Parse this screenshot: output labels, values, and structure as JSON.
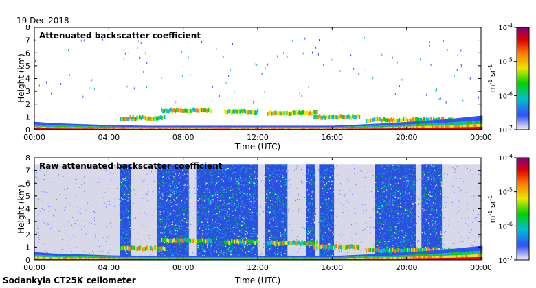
{
  "header": {
    "date": "19 Dec 2018"
  },
  "footer": {
    "instrument": "Sodankyla CT25K ceilometer"
  },
  "chart_data": [
    {
      "type": "heatmap",
      "title": "Attenuated backscatter coefficient",
      "xlabel": "Time (UTC)",
      "ylabel": "Height (km)",
      "x_ticks": [
        "00:00",
        "04:00",
        "08:00",
        "12:00",
        "16:00",
        "20:00",
        "00:00"
      ],
      "y_ticks": [
        "0",
        "1",
        "2",
        "3",
        "4",
        "5",
        "6",
        "7",
        "8"
      ],
      "xlim_hours": [
        0,
        24
      ],
      "ylim_km": [
        0,
        8
      ],
      "colorbar": {
        "scale": "log",
        "label": "m-1 sr-1",
        "ticks": [
          "10-7",
          "10-6",
          "10-5",
          "10-4"
        ],
        "range": [
          1e-07,
          0.0001
        ],
        "colors": [
          "#f0f0f5",
          "#3050ff",
          "#00c0d0",
          "#00d000",
          "#e8e800",
          "#ff8000",
          "#e00000",
          "#800080"
        ]
      },
      "features": {
        "surface_layer_top_km": [
          [
            0,
            0.6
          ],
          [
            1,
            0.5
          ],
          [
            4,
            0.35
          ],
          [
            6,
            0.3
          ],
          [
            12,
            0.3
          ],
          [
            16,
            0.3
          ],
          [
            19,
            0.5
          ],
          [
            22,
            0.8
          ],
          [
            24,
            1.1
          ]
        ],
        "cloud_layers": [
          {
            "start_h": 4.6,
            "end_h": 7.0,
            "height_km": 0.9
          },
          {
            "start_h": 6.8,
            "end_h": 9.5,
            "height_km": 1.5
          },
          {
            "start_h": 10.2,
            "end_h": 12.0,
            "height_km": 1.4
          },
          {
            "start_h": 12.5,
            "end_h": 15.2,
            "height_km": 1.3
          },
          {
            "start_h": 15.0,
            "end_h": 17.5,
            "height_km": 1.0
          },
          {
            "start_h": 17.8,
            "end_h": 22.5,
            "height_km": 0.75
          }
        ]
      }
    },
    {
      "type": "heatmap",
      "title": "Raw attenuated backscatter coefficient",
      "xlabel": "Time (UTC)",
      "ylabel": "Height (km)",
      "x_ticks": [
        "00:00",
        "04:00",
        "08:00",
        "12:00",
        "16:00",
        "20:00",
        "00:00"
      ],
      "y_ticks": [
        "0",
        "1",
        "2",
        "3",
        "4",
        "5",
        "6",
        "7",
        "8"
      ],
      "xlim_hours": [
        0,
        24
      ],
      "ylim_km": [
        0,
        8
      ],
      "colorbar": {
        "scale": "log",
        "label": "m-1 sr-1",
        "ticks": [
          "10-7",
          "10-6",
          "10-5",
          "10-4"
        ],
        "range": [
          1e-07,
          0.0001
        ],
        "colors": [
          "#f0f0f5",
          "#3050ff",
          "#00c0d0",
          "#00d000",
          "#e8e800",
          "#ff8000",
          "#e00000",
          "#800080"
        ]
      },
      "features": {
        "signal_top_km": 7.5,
        "noisy_intervals_h": [
          [
            4.6,
            5.2
          ],
          [
            6.6,
            8.3
          ],
          [
            8.7,
            12.0
          ],
          [
            12.4,
            13.6
          ],
          [
            14.6,
            15.1
          ],
          [
            15.3,
            16.1
          ],
          [
            18.3,
            20.5
          ],
          [
            20.8,
            21.9
          ]
        ]
      }
    }
  ]
}
